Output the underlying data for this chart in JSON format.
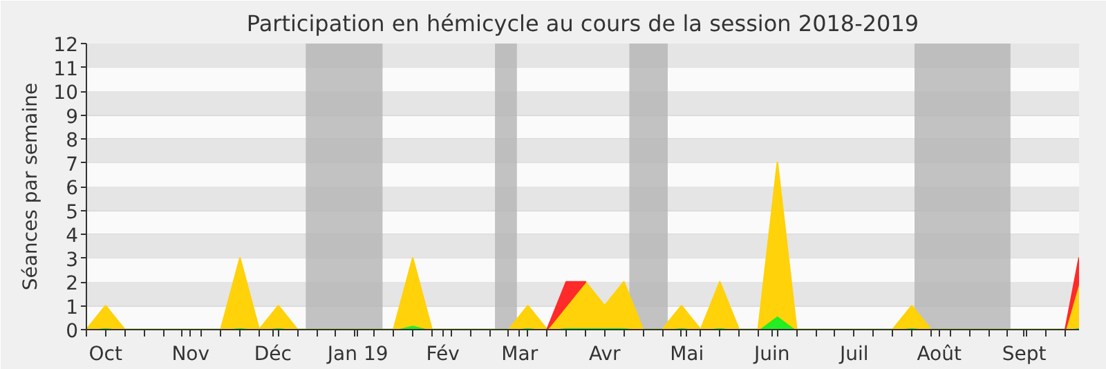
{
  "chart_data": {
    "type": "area",
    "stacked": true,
    "title": "Participation en hémicycle au cours de la session 2018-2019",
    "ylabel": "Séances par semaine",
    "x": [
      "2018-09-24",
      "2018-10-01",
      "2018-10-08",
      "2018-10-15",
      "2018-10-22",
      "2018-10-29",
      "2018-11-05",
      "2018-11-12",
      "2018-11-19",
      "2018-11-26",
      "2018-12-03",
      "2018-12-10",
      "2018-12-17",
      "2018-12-24",
      "2018-12-31",
      "2019-01-07",
      "2019-01-14",
      "2019-01-21",
      "2019-01-28",
      "2019-02-04",
      "2019-02-11",
      "2019-02-18",
      "2019-02-25",
      "2019-03-04",
      "2019-03-11",
      "2019-03-18",
      "2019-03-25",
      "2019-04-01",
      "2019-04-08",
      "2019-04-15",
      "2019-04-22",
      "2019-04-29",
      "2019-05-06",
      "2019-05-13",
      "2019-05-20",
      "2019-05-27",
      "2019-06-03",
      "2019-06-10",
      "2019-06-17",
      "2019-06-24",
      "2019-07-01",
      "2019-07-08",
      "2019-07-15",
      "2019-07-22",
      "2019-07-29",
      "2019-08-05",
      "2019-08-12",
      "2019-08-19",
      "2019-08-26",
      "2019-09-02",
      "2019-09-09",
      "2019-09-16",
      "2019-09-21"
    ],
    "series": [
      {
        "color": "#22ee22",
        "values": [
          0,
          0.1,
          0,
          0,
          0,
          0,
          0,
          0,
          0.1,
          0,
          0.1,
          0,
          0,
          0,
          0,
          0,
          0,
          0.2,
          0,
          0,
          0,
          0,
          0,
          0.1,
          0,
          0.1,
          0.1,
          0.1,
          0.1,
          0,
          0,
          0.1,
          0,
          0.1,
          0,
          0,
          0.6,
          0,
          0,
          0,
          0,
          0,
          0,
          0.1,
          0,
          0,
          0,
          0,
          0,
          0,
          0,
          0,
          0.1
        ]
      },
      {
        "color": "#ffd20a",
        "values": [
          0,
          0.9,
          0,
          0,
          0,
          0,
          0,
          0,
          2.9,
          0,
          0.9,
          0,
          0,
          0,
          0,
          0,
          0,
          2.8,
          0,
          0,
          0,
          0,
          0,
          0.9,
          0,
          0.9,
          1.9,
          0.9,
          1.9,
          0,
          0,
          0.9,
          0,
          1.9,
          0,
          0,
          6.4,
          0,
          0,
          0,
          0,
          0,
          0,
          0.9,
          0,
          0,
          0,
          0,
          0,
          0,
          0,
          0,
          1.9
        ]
      },
      {
        "color": "#ff2a2a",
        "values": [
          null,
          null,
          null,
          null,
          null,
          null,
          null,
          null,
          null,
          null,
          null,
          null,
          null,
          null,
          null,
          null,
          null,
          null,
          null,
          null,
          null,
          null,
          null,
          null,
          0,
          1,
          0,
          null,
          null,
          null,
          null,
          null,
          null,
          null,
          null,
          null,
          null,
          null,
          null,
          null,
          null,
          null,
          null,
          null,
          null,
          null,
          null,
          null,
          null,
          null,
          null,
          0,
          1
        ]
      }
    ],
    "xlim": [
      "2018-09-24",
      "2019-09-21"
    ],
    "xticks": [
      {
        "value": "2018-10-01",
        "label": "Oct"
      },
      {
        "value": "2018-11-01",
        "label": "Nov"
      },
      {
        "value": "2018-12-01",
        "label": "Déc"
      },
      {
        "value": "2019-01-01",
        "label": "Jan 19"
      },
      {
        "value": "2019-02-01",
        "label": "Fév"
      },
      {
        "value": "2019-03-01",
        "label": "Mar"
      },
      {
        "value": "2019-04-01",
        "label": "Avr"
      },
      {
        "value": "2019-05-01",
        "label": "Mai"
      },
      {
        "value": "2019-06-01",
        "label": "Juin"
      },
      {
        "value": "2019-07-01",
        "label": "Juil"
      },
      {
        "value": "2019-08-01",
        "label": "Août"
      },
      {
        "value": "2019-09-01",
        "label": "Sept"
      },
      {
        "value": "2018-09-24",
        "label": null
      },
      {
        "value": "2018-10-08",
        "label": null
      },
      {
        "value": "2018-10-15",
        "label": null
      },
      {
        "value": "2018-10-22",
        "label": null
      },
      {
        "value": "2018-10-29",
        "label": null
      },
      {
        "value": "2018-11-05",
        "label": null
      },
      {
        "value": "2018-11-12",
        "label": null
      },
      {
        "value": "2018-11-19",
        "label": null
      },
      {
        "value": "2018-11-26",
        "label": null
      },
      {
        "value": "2018-12-03",
        "label": null
      },
      {
        "value": "2018-12-10",
        "label": null
      },
      {
        "value": "2018-12-17",
        "label": null
      },
      {
        "value": "2018-12-24",
        "label": null
      },
      {
        "value": "2018-12-31",
        "label": null
      },
      {
        "value": "2019-01-07",
        "label": null
      },
      {
        "value": "2019-01-14",
        "label": null
      },
      {
        "value": "2019-01-21",
        "label": null
      },
      {
        "value": "2019-01-28",
        "label": null
      },
      {
        "value": "2019-02-04",
        "label": null
      },
      {
        "value": "2019-02-11",
        "label": null
      },
      {
        "value": "2019-02-18",
        "label": null
      },
      {
        "value": "2019-02-25",
        "label": null
      },
      {
        "value": "2019-03-04",
        "label": null
      },
      {
        "value": "2019-03-11",
        "label": null
      },
      {
        "value": "2019-03-18",
        "label": null
      },
      {
        "value": "2019-03-25",
        "label": null
      },
      {
        "value": "2019-04-08",
        "label": null
      },
      {
        "value": "2019-04-15",
        "label": null
      },
      {
        "value": "2019-04-22",
        "label": null
      },
      {
        "value": "2019-04-29",
        "label": null
      },
      {
        "value": "2019-05-06",
        "label": null
      },
      {
        "value": "2019-05-13",
        "label": null
      },
      {
        "value": "2019-05-20",
        "label": null
      },
      {
        "value": "2019-05-27",
        "label": null
      },
      {
        "value": "2019-06-03",
        "label": null
      },
      {
        "value": "2019-06-10",
        "label": null
      },
      {
        "value": "2019-06-17",
        "label": null
      },
      {
        "value": "2019-06-24",
        "label": null
      },
      {
        "value": "2019-07-08",
        "label": null
      },
      {
        "value": "2019-07-15",
        "label": null
      },
      {
        "value": "2019-07-22",
        "label": null
      },
      {
        "value": "2019-07-29",
        "label": null
      },
      {
        "value": "2019-08-05",
        "label": null
      },
      {
        "value": "2019-08-12",
        "label": null
      },
      {
        "value": "2019-08-19",
        "label": null
      },
      {
        "value": "2019-08-26",
        "label": null
      },
      {
        "value": "2019-09-02",
        "label": null
      },
      {
        "value": "2019-09-09",
        "label": null
      },
      {
        "value": "2019-09-16",
        "label": null
      }
    ],
    "ylim": [
      0,
      12
    ],
    "yticks": [
      0,
      1,
      2,
      3,
      4,
      5,
      6,
      7,
      8,
      9,
      10,
      11,
      12
    ],
    "grid": "y",
    "bands": [
      {
        "axis": "x",
        "from": "2018-12-13",
        "to": "2019-01-10",
        "color": "#b4b4b4"
      },
      {
        "axis": "x",
        "from": "2019-02-20",
        "to": "2019-02-28",
        "color": "#b4b4b4"
      },
      {
        "axis": "x",
        "from": "2019-04-10",
        "to": "2019-04-24",
        "color": "#b4b4b4"
      },
      {
        "axis": "x",
        "from": "2019-07-23",
        "to": "2019-08-27",
        "color": "#b4b4b4"
      }
    ]
  }
}
